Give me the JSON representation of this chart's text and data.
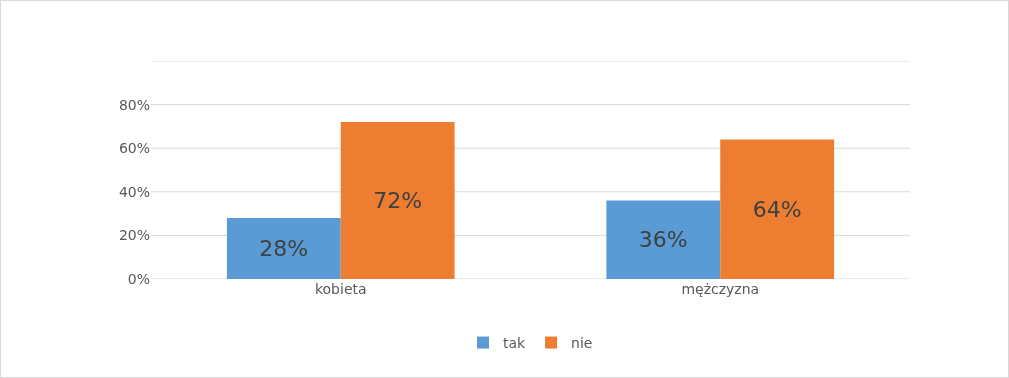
{
  "chart_data": {
    "type": "bar",
    "categories": [
      "kobieta",
      "mężczyzna"
    ],
    "series": [
      {
        "name": "tak",
        "color": "#5b9bd5",
        "values": [
          28,
          36
        ],
        "value_labels": [
          "28%",
          "36%"
        ]
      },
      {
        "name": "nie",
        "color": "#ed7d31",
        "values": [
          72,
          64
        ],
        "value_labels": [
          "72%",
          "64%"
        ]
      }
    ],
    "ylim": [
      0,
      100
    ],
    "yticks": [
      {
        "value": 0,
        "label": "0%"
      },
      {
        "value": 20,
        "label": "20%"
      },
      {
        "value": 40,
        "label": "40%"
      },
      {
        "value": 60,
        "label": "60%"
      },
      {
        "value": 80,
        "label": "80%"
      },
      {
        "value": 100,
        "label": null
      }
    ],
    "grid": "y",
    "legend": "bottom"
  }
}
